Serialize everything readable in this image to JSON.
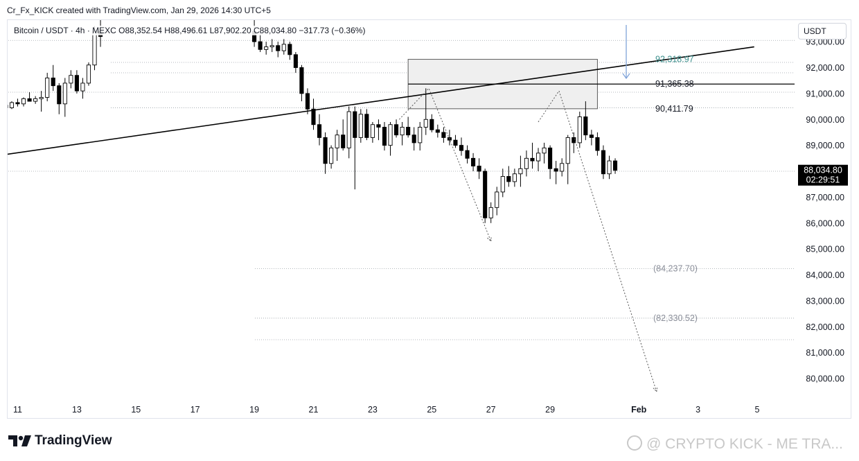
{
  "header": {
    "credit": "Cr_Fx_KICK created with TradingView.com, Jan 29, 2026 14:30 UTC+5",
    "symbol_line": "Bitcoin / USDT · 4h · MEXC  O88,352.54  H88,496.61  L87,902.20  C88,034.80  −317.73 (−0.36%)",
    "currency": "USDT"
  },
  "footer": {
    "brand": "TradingView",
    "watermark": "@ CRYPTO KICK - ME TRA..."
  },
  "colors": {
    "up_candle": "#ffffff",
    "down_candle": "#000000",
    "zone_fill": "#efefef",
    "teal_label": "#3b8f8c",
    "blue_arrow": "#7fa3d9",
    "grid_text": "#131722"
  },
  "chart_data": {
    "type": "candlestick",
    "symbol": "Bitcoin / USDT",
    "timeframe": "4h",
    "exchange": "MEXC",
    "x_ticks": [
      "11",
      "13",
      "15",
      "17",
      "19",
      "21",
      "23",
      "25",
      "27",
      "29",
      "Feb",
      "3",
      "5"
    ],
    "y_ticks": [
      "93,000.00",
      "92,000.00",
      "91,000.00",
      "90,000.00",
      "89,000.00",
      "88,000.00",
      "87,000.00",
      "86,000.00",
      "85,000.00",
      "84,000.00",
      "83,000.00",
      "82,000.00",
      "81,000.00",
      "80,000.00"
    ],
    "ylim": [
      79200,
      93300
    ],
    "xlim": [
      "Jan 10",
      "Feb 6"
    ],
    "last_price": "88,034.80",
    "countdown": "02:29:51",
    "levels": [
      {
        "label": "92,318.97",
        "value": 92318.97,
        "style": "teal"
      },
      {
        "label": "91,365.38",
        "value": 91365.38,
        "style": "solid"
      },
      {
        "label": "90,411.79",
        "value": 90411.79,
        "style": "dark"
      },
      {
        "label": "(84,237.70)",
        "value": 84237.7,
        "style": "grey"
      },
      {
        "label": "(82,330.52)",
        "value": 82330.52,
        "style": "grey"
      }
    ],
    "dotted_levels": [
      93050,
      92200,
      91800,
      91050,
      90450,
      88000,
      84237.7,
      82330.52,
      81500
    ],
    "zone": {
      "from_day": 24.2,
      "to_day": 30.6,
      "low": 90411.79,
      "high": 92318.97
    },
    "trendline": {
      "start": {
        "day": 10,
        "price": 88550
      },
      "end": {
        "day": 35.9,
        "price": 92800
      }
    },
    "projection_1": [
      [
        23.9,
        90000
      ],
      [
        24.9,
        91200
      ],
      [
        27.0,
        85300
      ]
    ],
    "projection_2": [
      [
        28.6,
        89900
      ],
      [
        29.3,
        91100
      ],
      [
        32.6,
        79500
      ]
    ],
    "candles": [
      [
        10.0,
        90650,
        90750,
        90550,
        90600
      ],
      [
        10.2,
        90600,
        90700,
        90450,
        90500
      ],
      [
        10.4,
        90500,
        90650,
        90350,
        90550
      ],
      [
        10.6,
        90550,
        90600,
        90400,
        90450
      ],
      [
        10.8,
        90450,
        90700,
        90400,
        90650
      ],
      [
        11.0,
        90650,
        90800,
        90500,
        90600
      ],
      [
        11.2,
        90600,
        90850,
        90500,
        90800
      ],
      [
        11.4,
        90800,
        91050,
        90700,
        90700
      ],
      [
        11.6,
        90700,
        90900,
        90600,
        90800
      ],
      [
        11.8,
        90800,
        91100,
        90300,
        90850
      ],
      [
        12.0,
        90850,
        91800,
        90700,
        91600
      ],
      [
        12.2,
        91600,
        92100,
        91100,
        91300
      ],
      [
        12.4,
        91300,
        91400,
        90200,
        90600
      ],
      [
        12.6,
        90600,
        91600,
        90100,
        91400
      ],
      [
        12.8,
        91400,
        91900,
        91200,
        91700
      ],
      [
        13.0,
        91700,
        91900,
        91000,
        91100
      ],
      [
        13.2,
        91100,
        91600,
        90800,
        91400
      ],
      [
        13.4,
        91400,
        92200,
        91300,
        92100
      ],
      [
        13.6,
        92100,
        93600,
        91900,
        93400
      ],
      [
        13.8,
        93400,
        94500,
        92800,
        93200
      ],
      [
        19.0,
        93400,
        94000,
        92800,
        93000
      ],
      [
        19.2,
        93000,
        93400,
        92600,
        92700
      ],
      [
        19.4,
        92700,
        93000,
        92500,
        92800
      ],
      [
        19.6,
        92800,
        93100,
        92600,
        92850
      ],
      [
        19.8,
        92850,
        93000,
        92400,
        92650
      ],
      [
        20.0,
        92650,
        93100,
        92500,
        92900
      ],
      [
        20.2,
        92900,
        93000,
        92300,
        92500
      ],
      [
        20.4,
        92500,
        92600,
        91800,
        92000
      ],
      [
        20.6,
        92000,
        92100,
        90700,
        91000
      ],
      [
        20.8,
        91000,
        91200,
        90200,
        90400
      ],
      [
        21.0,
        90400,
        90800,
        89600,
        89800
      ],
      [
        21.2,
        89800,
        90200,
        89000,
        89300
      ],
      [
        21.4,
        89300,
        89500,
        87900,
        88300
      ],
      [
        21.6,
        88300,
        89000,
        88100,
        88900
      ],
      [
        21.8,
        88900,
        89600,
        88400,
        89400
      ],
      [
        22.0,
        89400,
        90000,
        88800,
        88900
      ],
      [
        22.2,
        88900,
        90500,
        88500,
        90300
      ],
      [
        22.4,
        90300,
        90500,
        87300,
        89300
      ],
      [
        22.6,
        89300,
        90400,
        89100,
        90200
      ],
      [
        22.8,
        90200,
        90400,
        89200,
        89300
      ],
      [
        23.0,
        89300,
        89900,
        89100,
        89800
      ],
      [
        23.2,
        89800,
        90000,
        89200,
        89700
      ],
      [
        23.4,
        89700,
        89900,
        88800,
        89000
      ],
      [
        23.6,
        89000,
        89900,
        88600,
        89800
      ],
      [
        23.8,
        89800,
        90000,
        89300,
        89400
      ],
      [
        24.0,
        89400,
        89900,
        89000,
        89700
      ],
      [
        24.2,
        89700,
        90100,
        89300,
        89400
      ],
      [
        24.4,
        89400,
        89700,
        88800,
        89100
      ],
      [
        24.6,
        89100,
        89900,
        88800,
        89700
      ],
      [
        24.8,
        89700,
        91200,
        89400,
        90000
      ],
      [
        25.0,
        90000,
        90200,
        89500,
        89600
      ],
      [
        25.2,
        89600,
        89800,
        89300,
        89500
      ],
      [
        25.4,
        89500,
        89700,
        89100,
        89300
      ],
      [
        25.6,
        89300,
        89600,
        89000,
        89200
      ],
      [
        25.8,
        89200,
        89400,
        88900,
        89000
      ],
      [
        26.0,
        89000,
        89300,
        88600,
        88800
      ],
      [
        26.2,
        88800,
        89000,
        88300,
        88500
      ],
      [
        26.4,
        88500,
        88700,
        88000,
        88200
      ],
      [
        26.6,
        88200,
        88500,
        87700,
        88000
      ],
      [
        26.8,
        88000,
        88100,
        86000,
        86200
      ],
      [
        27.0,
        86200,
        86800,
        86000,
        86600
      ],
      [
        27.2,
        86600,
        87400,
        86300,
        87200
      ],
      [
        27.4,
        87200,
        88100,
        87000,
        87800
      ],
      [
        27.6,
        87800,
        88200,
        87400,
        87600
      ],
      [
        27.8,
        87600,
        88100,
        87400,
        87900
      ],
      [
        28.0,
        87900,
        88600,
        87400,
        88100
      ],
      [
        28.2,
        88100,
        88800,
        87800,
        88500
      ],
      [
        28.4,
        88500,
        89100,
        88100,
        88400
      ],
      [
        28.6,
        88400,
        88900,
        88000,
        88700
      ],
      [
        28.8,
        88700,
        89100,
        88300,
        88900
      ],
      [
        29.0,
        88900,
        89000,
        87700,
        88100
      ],
      [
        29.2,
        88100,
        88400,
        87500,
        88000
      ],
      [
        29.4,
        88000,
        88500,
        87800,
        88300
      ],
      [
        29.6,
        88300,
        89400,
        87500,
        89300
      ],
      [
        29.8,
        89300,
        89500,
        88700,
        89100
      ],
      [
        30.0,
        89100,
        90300,
        88900,
        90100
      ],
      [
        30.2,
        90100,
        90700,
        89200,
        89400
      ],
      [
        30.4,
        89400,
        89600,
        89000,
        89300
      ],
      [
        30.6,
        89300,
        89500,
        88600,
        88800
      ],
      [
        30.8,
        88800,
        89000,
        87700,
        87900
      ],
      [
        31.0,
        87900,
        88600,
        87700,
        88400
      ],
      [
        31.2,
        88400,
        88500,
        87900,
        88035
      ]
    ]
  }
}
